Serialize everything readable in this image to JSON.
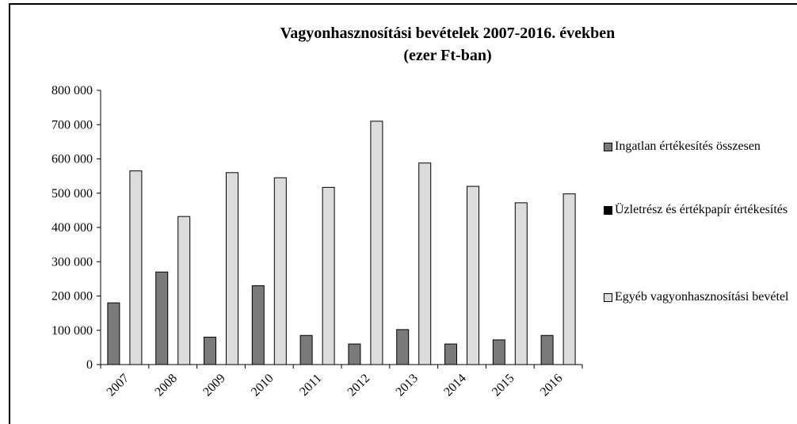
{
  "chart_data": {
    "type": "bar",
    "title": "Vagyonhasznosítási bevételek 2007-2016. években",
    "subtitle": "(ezer Ft-ban)",
    "categories": [
      "2007",
      "2008",
      "2009",
      "2010",
      "2011",
      "2012",
      "2013",
      "2014",
      "2015",
      "2016"
    ],
    "series": [
      {
        "name": "Ingatlan értékesítés összesen",
        "color": "#7a7a7a",
        "values": [
          180000,
          270000,
          80000,
          230000,
          85000,
          60000,
          102000,
          60000,
          72000,
          85000
        ]
      },
      {
        "name": "Üzletrész és értékpapír értékesítés",
        "color": "#000000",
        "values": [
          0,
          0,
          0,
          0,
          0,
          0,
          0,
          0,
          0,
          0
        ]
      },
      {
        "name": "Egyéb vagyonhasznosítási bevétel",
        "color": "#dcdcdc",
        "values": [
          565000,
          432000,
          560000,
          545000,
          517000,
          710000,
          588000,
          520000,
          472000,
          498000
        ]
      }
    ],
    "ylim": [
      0,
      800000
    ],
    "yticks": [
      0,
      {
        "value": 100000,
        "label": "100 000"
      },
      {
        "value": 200000,
        "label": "200 000"
      },
      {
        "value": 300000,
        "label": "300 000"
      },
      {
        "value": 400000,
        "label": "400 000"
      },
      {
        "value": 500000,
        "label": "500 000"
      },
      {
        "value": 600000,
        "label": "600 000"
      },
      {
        "value": 700000,
        "label": "700 000"
      },
      {
        "value": 800000,
        "label": "800 000"
      }
    ],
    "legend": "right"
  }
}
